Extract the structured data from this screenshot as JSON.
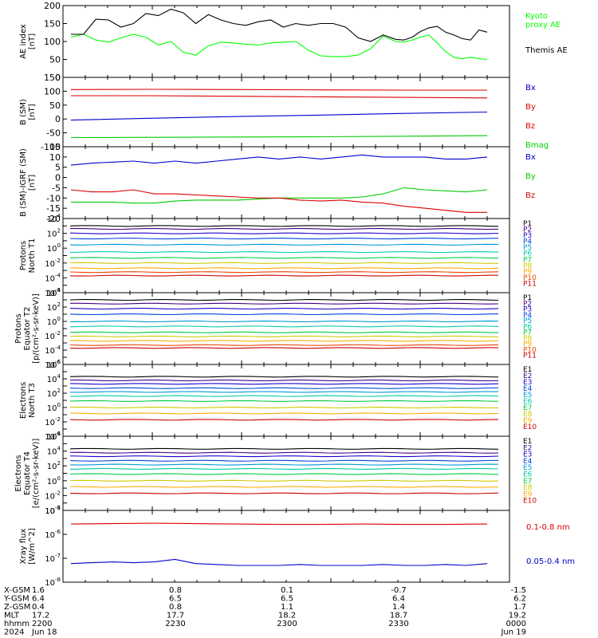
{
  "chart_data": [
    {
      "type": "line",
      "ylabel": "AE index\n[nT]",
      "ylim": [
        0,
        200
      ],
      "yticks": [
        0,
        50,
        100,
        150,
        200
      ],
      "grid": false,
      "series": [
        {
          "name": "Kyoto\nproxy AE",
          "color": "#00ff00",
          "x": [
            0,
            3,
            6,
            9,
            12,
            15,
            18,
            21,
            24,
            27,
            30,
            33,
            36,
            39,
            42,
            45,
            48,
            51,
            54,
            57,
            60,
            63,
            66,
            69,
            72,
            75,
            78,
            80,
            82,
            84,
            86,
            88,
            90,
            92,
            94,
            96,
            98,
            100
          ],
          "y": [
            112,
            120,
            104,
            98,
            110,
            120,
            112,
            90,
            100,
            70,
            62,
            88,
            98,
            96,
            92,
            90,
            96,
            98,
            100,
            76,
            60,
            58,
            58,
            62,
            80,
            115,
            100,
            98,
            104,
            112,
            118,
            96,
            72,
            56,
            52,
            56,
            52,
            50
          ]
        },
        {
          "name": "Themis AE",
          "color": "#000000",
          "x": [
            0,
            3,
            6,
            9,
            12,
            15,
            18,
            21,
            24,
            27,
            30,
            33,
            36,
            39,
            42,
            45,
            48,
            51,
            54,
            57,
            60,
            63,
            66,
            69,
            72,
            75,
            78,
            80,
            82,
            84,
            86,
            88,
            90,
            92,
            94,
            96,
            98,
            100
          ],
          "y": [
            120,
            120,
            162,
            160,
            140,
            150,
            178,
            172,
            190,
            180,
            150,
            175,
            160,
            150,
            145,
            155,
            160,
            140,
            150,
            145,
            150,
            150,
            140,
            110,
            100,
            118,
            106,
            104,
            112,
            128,
            138,
            142,
            126,
            118,
            108,
            104,
            132,
            126
          ]
        }
      ]
    },
    {
      "type": "line",
      "ylabel": "B (SM)\n[nT]",
      "ylim": [
        -100,
        150
      ],
      "yticks": [
        -100,
        -50,
        0,
        50,
        100,
        150
      ],
      "series": [
        {
          "name": "Bx",
          "color": "#0000cc",
          "x": [
            0,
            20,
            40,
            60,
            80,
            100
          ],
          "y": [
            -4,
            3,
            9,
            14,
            20,
            25
          ]
        },
        {
          "name": "By",
          "color": "#dd0000",
          "x": [
            0,
            20,
            40,
            60,
            80,
            100
          ],
          "y": [
            84,
            84,
            82,
            80,
            78,
            76
          ]
        },
        {
          "name": "Bz",
          "color": "#dd0000",
          "x": [
            0,
            20,
            40,
            60,
            80,
            100
          ],
          "y": [
            106,
            107,
            106,
            105,
            104,
            104
          ]
        },
        {
          "name": "Bmag",
          "color": "#00cc00",
          "x": [
            0,
            20,
            40,
            60,
            80,
            100
          ],
          "y": [
            -67,
            -66,
            -65,
            -64,
            -62,
            -60
          ]
        }
      ]
    },
    {
      "type": "line",
      "ylabel": "B (SM)-IGRF (SM)\n[nT]",
      "ylim": [
        -20,
        15
      ],
      "yticks": [
        -20,
        -15,
        -10,
        -5,
        0,
        5,
        10,
        15
      ],
      "series": [
        {
          "name": "Bx",
          "color": "#0000cc",
          "x": [
            0,
            5,
            10,
            15,
            20,
            25,
            30,
            35,
            40,
            45,
            50,
            55,
            60,
            65,
            70,
            75,
            80,
            85,
            90,
            95,
            100
          ],
          "y": [
            6,
            7,
            7.5,
            8,
            7,
            8,
            7,
            8,
            9,
            10,
            9,
            10,
            9,
            10,
            11,
            10,
            10,
            10,
            9,
            9,
            10
          ]
        },
        {
          "name": "By",
          "color": "#00cc00",
          "x": [
            0,
            5,
            10,
            15,
            20,
            25,
            30,
            35,
            40,
            45,
            50,
            55,
            60,
            65,
            70,
            75,
            80,
            85,
            90,
            95,
            100
          ],
          "y": [
            -12,
            -12,
            -12,
            -12.5,
            -12.5,
            -11.5,
            -11,
            -11,
            -11,
            -10.5,
            -10,
            -10,
            -10,
            -10,
            -9.5,
            -8,
            -5,
            -6,
            -6.5,
            -7,
            -6
          ]
        },
        {
          "name": "Bz",
          "color": "#dd0000",
          "x": [
            0,
            5,
            10,
            15,
            20,
            25,
            30,
            35,
            40,
            45,
            50,
            55,
            60,
            65,
            70,
            75,
            80,
            85,
            90,
            95,
            100
          ],
          "y": [
            -6,
            -7,
            -7,
            -6,
            -8,
            -8,
            -8.5,
            -9,
            -9.5,
            -10,
            -10,
            -11,
            -11.5,
            -11,
            -12,
            -12.5,
            -14,
            -15,
            -16,
            -17,
            -17
          ]
        }
      ]
    },
    {
      "type": "line",
      "ylabel": "Protons\nNorth T1",
      "yscale": "log",
      "ylim": [
        1e-06,
        10000.0
      ],
      "yticks": [
        "10^4",
        "10^2",
        "10^0",
        "10^-2",
        "10^-4",
        "10^-6"
      ],
      "series": [
        {
          "name": "P1",
          "color": "#000000",
          "y": 1000
        },
        {
          "name": "P2",
          "color": "#440088",
          "y": 400
        },
        {
          "name": "P3",
          "color": "#2200cc",
          "y": 100
        },
        {
          "name": "P4",
          "color": "#0044dd",
          "y": 20
        },
        {
          "name": "P5",
          "color": "#0099dd",
          "y": 3
        },
        {
          "name": "P6",
          "color": "#00ccaa",
          "y": 0.3
        },
        {
          "name": "P7",
          "color": "#00cc44",
          "y": 0.05
        },
        {
          "name": "P8",
          "color": "#cccc00",
          "y": 0.01
        },
        {
          "name": "P9",
          "color": "#ffaa00",
          "y": 0.002
        },
        {
          "name": "P10",
          "color": "#ee4400",
          "y": 0.0006
        },
        {
          "name": "P11",
          "color": "#cc0000",
          "y": 0.0002
        }
      ]
    },
    {
      "type": "line",
      "ylabel": "Protons\nEquator T2\n[p/(cm²-s-sr-keV)]",
      "yscale": "log",
      "ylim": [
        1e-06,
        10000.0
      ],
      "yticks": [
        "10^4",
        "10^2",
        "10^0",
        "10^-2",
        "10^-4",
        "10^-6"
      ],
      "series": [
        {
          "name": "P1",
          "color": "#000000",
          "y": 1000
        },
        {
          "name": "P2",
          "color": "#440088",
          "y": 300
        },
        {
          "name": "P3",
          "color": "#2200cc",
          "y": 60
        },
        {
          "name": "P4",
          "color": "#0044dd",
          "y": 10
        },
        {
          "name": "P5",
          "color": "#0099dd",
          "y": 1
        },
        {
          "name": "P6",
          "color": "#00ccaa",
          "y": 0.2
        },
        {
          "name": "P7",
          "color": "#00cc44",
          "y": 0.03
        },
        {
          "name": "P8",
          "color": "#cccc00",
          "y": 0.008
        },
        {
          "name": "P9",
          "color": "#ffaa00",
          "y": 0.002
        },
        {
          "name": "P10",
          "color": "#ee4400",
          "y": 0.0005
        },
        {
          "name": "P11",
          "color": "#cc0000",
          "y": 0.0002
        }
      ]
    },
    {
      "type": "line",
      "ylabel": "Electrons\nNorth T3",
      "yscale": "log",
      "ylim": [
        0.0001,
        1000000.0
      ],
      "yticks": [
        "10^6",
        "10^4",
        "10^2",
        "10^0",
        "10^-2",
        "10^-4"
      ],
      "series": [
        {
          "name": "E1",
          "color": "#000000",
          "y": 20000
        },
        {
          "name": "E2",
          "color": "#440088",
          "y": 6000
        },
        {
          "name": "E3",
          "color": "#2200cc",
          "y": 2000
        },
        {
          "name": "E4",
          "color": "#0044dd",
          "y": 500
        },
        {
          "name": "E5",
          "color": "#0099dd",
          "y": 150
        },
        {
          "name": "E6",
          "color": "#00ccaa",
          "y": 40
        },
        {
          "name": "E7",
          "color": "#00cc44",
          "y": 8
        },
        {
          "name": "E8",
          "color": "#cccc00",
          "y": 1
        },
        {
          "name": "E9",
          "color": "#ffaa00",
          "y": 0.15
        },
        {
          "name": "E10",
          "color": "#cc0000",
          "y": 0.02
        }
      ]
    },
    {
      "type": "line",
      "ylabel": "Electrons\nEquator T4\n[e/(cm²-s-sr-keV)]",
      "yscale": "log",
      "ylim": [
        0.0001,
        1000000.0
      ],
      "yticks": [
        "10^6",
        "10^4",
        "10^2",
        "10^0",
        "10^-2",
        "10^-4"
      ],
      "series": [
        {
          "name": "E1",
          "color": "#000000",
          "y": 20000
        },
        {
          "name": "E2",
          "color": "#440088",
          "y": 6000
        },
        {
          "name": "E3",
          "color": "#2200cc",
          "y": 2000
        },
        {
          "name": "E4",
          "color": "#0044dd",
          "y": 500
        },
        {
          "name": "E5",
          "color": "#0099dd",
          "y": 150
        },
        {
          "name": "E6",
          "color": "#00ccaa",
          "y": 40
        },
        {
          "name": "E7",
          "color": "#00cc44",
          "y": 8
        },
        {
          "name": "E8",
          "color": "#cccc00",
          "y": 1
        },
        {
          "name": "E9",
          "color": "#ffaa00",
          "y": 0.15
        },
        {
          "name": "E10",
          "color": "#cc0000",
          "y": 0.02
        }
      ]
    },
    {
      "type": "line",
      "ylabel": "Xray flux\n[W/m^2]",
      "yscale": "log",
      "ylim": [
        1e-08,
        1e-05
      ],
      "yticks": [
        "10^-5",
        "10^-6",
        "10^-7",
        "10^-8"
      ],
      "series": [
        {
          "name": "0.1-0.8 nm",
          "color": "#dd0000",
          "x": [
            0,
            10,
            20,
            30,
            40,
            50,
            60,
            70,
            80,
            90,
            100
          ],
          "y": [
            2.7e-06,
            2.8e-06,
            2.9e-06,
            2.8e-06,
            2.7e-06,
            2.6e-06,
            2.6e-06,
            2.7e-06,
            2.6e-06,
            2.6e-06,
            2.7e-06
          ]
        },
        {
          "name": "0.05-0.4 nm",
          "color": "#0000cc",
          "x": [
            0,
            5,
            10,
            15,
            20,
            25,
            30,
            35,
            40,
            45,
            50,
            55,
            60,
            65,
            70,
            75,
            80,
            85,
            90,
            95,
            100
          ],
          "y": [
            6e-08,
            6.5e-08,
            7e-08,
            6.5e-08,
            7e-08,
            9e-08,
            6e-08,
            5.5e-08,
            5e-08,
            5e-08,
            5e-08,
            5.5e-08,
            5e-08,
            5e-08,
            5e-08,
            5.5e-08,
            5e-08,
            5e-08,
            5.5e-08,
            5e-08,
            6e-08
          ]
        }
      ]
    }
  ],
  "xaxis": {
    "rows": [
      {
        "label": "X-GSM",
        "values": [
          "1.6",
          "0.8",
          "0.1",
          "-0.7",
          "-1.5"
        ]
      },
      {
        "label": "Y-GSM",
        "values": [
          "6.4",
          "6.5",
          "6.5",
          "6.4",
          "6.2"
        ]
      },
      {
        "label": "Z-GSM",
        "values": [
          "0.4",
          "0.8",
          "1.1",
          "1.4",
          "1.7"
        ]
      },
      {
        "label": "MLT",
        "values": [
          "17.2",
          "17.7",
          "18.2",
          "18.7",
          "19.2"
        ]
      },
      {
        "label": "hhmm",
        "values": [
          "2200",
          "2230",
          "2300",
          "2330",
          "0000"
        ]
      },
      {
        "label": "2024",
        "values": [
          "Jun 18",
          "",
          "",
          "",
          "Jun 19"
        ]
      }
    ]
  },
  "colors": {
    "axis": "#000000",
    "background": "#ffffff"
  }
}
